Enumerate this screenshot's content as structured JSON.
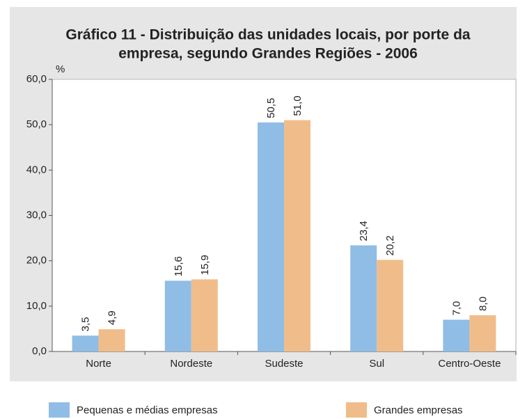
{
  "chart_data": {
    "type": "bar",
    "title": [
      "Gráfico 11 -  Distribuição das unidades locais, por porte da",
      "empresa, segundo Grandes Regiões - 2006"
    ],
    "ylabel": "%",
    "categories": [
      "Norte",
      "Nordeste",
      "Sudeste",
      "Sul",
      "Centro-Oeste"
    ],
    "series": [
      {
        "name": "Pequenas e médias empresas",
        "color": "#8fbde6",
        "values": [
          3.5,
          15.6,
          50.5,
          23.4,
          7.0
        ],
        "value_labels": [
          "3,5",
          "15,6",
          "50,5",
          "23,4",
          "7,0"
        ]
      },
      {
        "name": "Grandes empresas",
        "color": "#f0bd8a",
        "values": [
          4.9,
          15.9,
          51.0,
          20.2,
          8.0
        ],
        "value_labels": [
          "4,9",
          "15,9",
          "51,0",
          "20,2",
          "8,0"
        ]
      }
    ],
    "ylim": [
      0,
      60
    ],
    "yticks": [
      {
        "value": 0,
        "label": "0,0"
      },
      {
        "value": 10,
        "label": "10,0"
      },
      {
        "value": 20,
        "label": "20,0"
      },
      {
        "value": 30,
        "label": "30,0"
      },
      {
        "value": 40,
        "label": "40,0"
      },
      {
        "value": 50,
        "label": "50,0"
      },
      {
        "value": 60,
        "label": "60,0"
      }
    ],
    "grid": false
  }
}
